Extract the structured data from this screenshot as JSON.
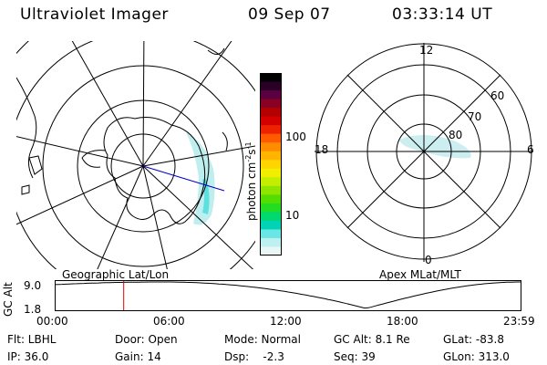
{
  "header": {
    "title": "Ultraviolet Imager",
    "date": "09 Sep 07",
    "time": "03:33:14 UT"
  },
  "left_map": {
    "caption": "Geographic Lat/Lon"
  },
  "right_map": {
    "caption": "Apex MLat/MLT",
    "mlt_labels": {
      "top": "12",
      "bottom": "0",
      "left": "18",
      "right": "6"
    },
    "lat_labels": [
      "60",
      "70",
      "80"
    ]
  },
  "colorbar": {
    "unit_label": "photon cm",
    "exp1": "-2",
    "mid": "s",
    "exp2": "-1",
    "ticks": [
      "100",
      "10"
    ],
    "colors": [
      "#000000",
      "#2b0026",
      "#5a0040",
      "#8a0022",
      "#b30000",
      "#d40000",
      "#ee2200",
      "#ff5a00",
      "#ff8c00",
      "#ffb400",
      "#ffd400",
      "#f2ee00",
      "#c4ee00",
      "#8fe400",
      "#55dd00",
      "#22dd22",
      "#00d870",
      "#00d4b4",
      "#6ae6e6",
      "#bff0f0",
      "#e9f7f7"
    ]
  },
  "altitude_plot": {
    "axis_label": "GC Alt",
    "y_top": "9.0",
    "y_bottom": "1.8",
    "x_ticks": [
      "00:00",
      "06:00",
      "12:00",
      "18:00",
      "23:59"
    ],
    "current_hour": 3.55,
    "marker_color": "#dd0000"
  },
  "status": {
    "filter": "Flt: LBHL",
    "ip": "IP: 36.0",
    "door": "Door: Open",
    "gain": "Gain: 14",
    "mode": "Mode: Normal",
    "dsp": "Dsp:    -2.3",
    "gc_alt": "GC Alt: 8.1 Re",
    "seq": "Seq: 39",
    "glat": "GLat: -83.8",
    "glon": "GLon: 313.0"
  }
}
